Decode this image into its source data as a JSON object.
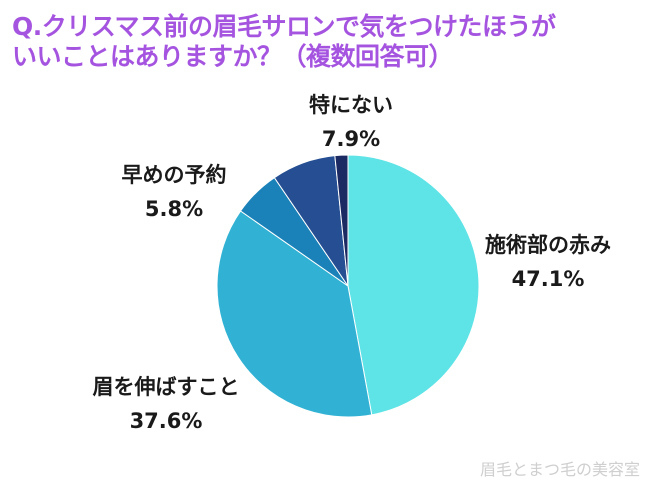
{
  "title": {
    "line1": "Q.クリスマス前の眉毛サロンで気をつけたほうが",
    "line2": "いいことはありますか？（複数回答可）"
  },
  "chart_data": {
    "type": "pie",
    "start_angle_deg": 0,
    "direction": "clockwise",
    "slices": [
      {
        "label": "施術部の赤み",
        "value": 47.1,
        "value_label": "47.1%",
        "color": "#5ee3e6"
      },
      {
        "label": "眉を伸ばすこと",
        "value": 37.6,
        "value_label": "37.6%",
        "color": "#31b2d4"
      },
      {
        "label": "早めの予約",
        "value": 5.8,
        "value_label": "5.8%",
        "color": "#1a82b8"
      },
      {
        "label": "特にない",
        "value": 7.9,
        "value_label": "7.9%",
        "color": "#254f92"
      },
      {
        "label": "",
        "value": 1.6,
        "value_label": "",
        "color": "#1c2a63"
      }
    ]
  },
  "watermark": "眉毛とまつ毛の美容室"
}
